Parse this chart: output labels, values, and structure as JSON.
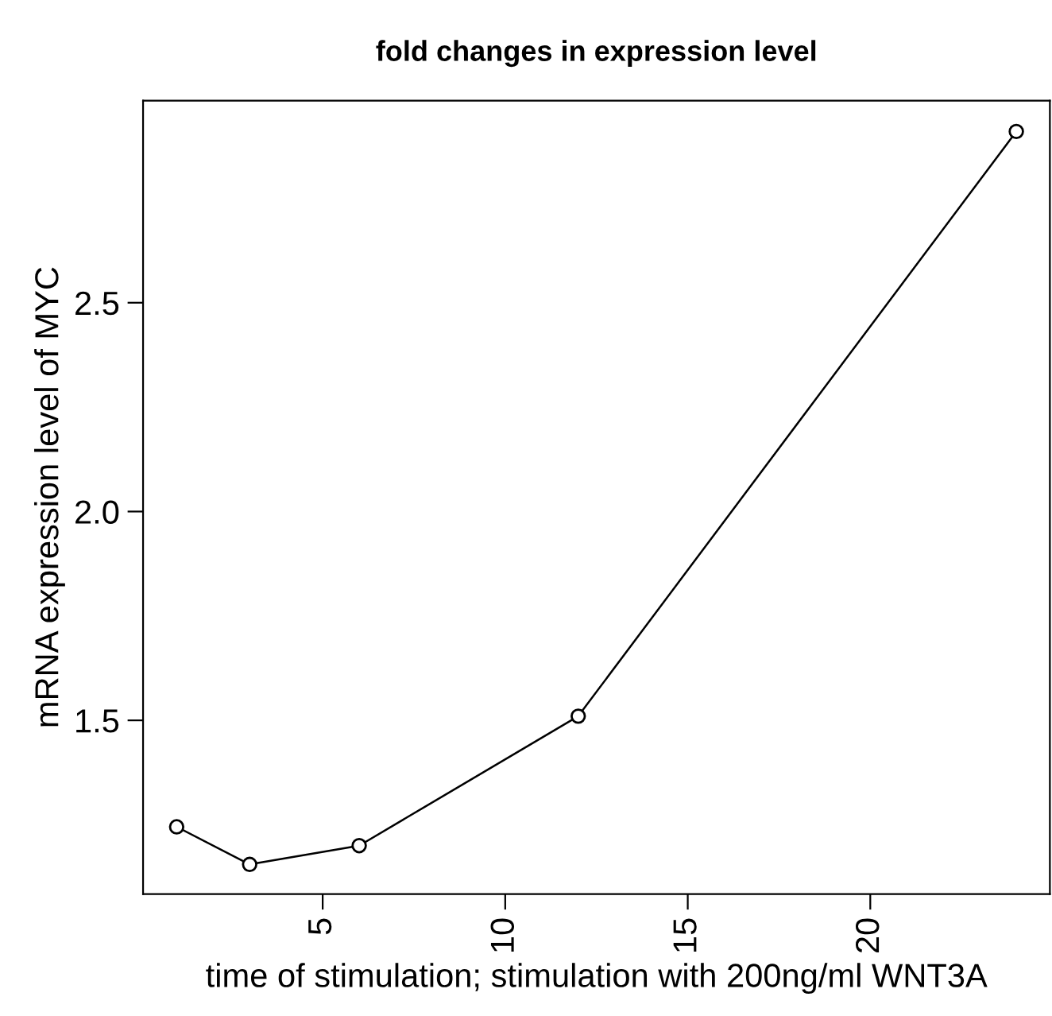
{
  "chart_data": {
    "type": "line",
    "title": "fold changes in expression level",
    "xlabel": "time of stimulation; stimulation with 200ng/ml WNT3A",
    "ylabel": "mRNA expression level of MYC",
    "x": [
      1,
      3,
      6,
      12,
      24
    ],
    "series": [
      {
        "color": "#000000",
        "values": [
          1.245,
          1.155,
          1.2,
          1.51,
          2.91
        ]
      }
    ],
    "xlim": [
      0.08,
      24.92
    ],
    "ylim": [
      1.084,
      2.984
    ],
    "xticks": [
      5,
      10,
      15,
      20
    ],
    "yticks": [
      1.5,
      {
        "value": 2,
        "label": "2.0"
      },
      2.5
    ],
    "marker": "circle",
    "line_style": "solid",
    "grid": false,
    "legend": false
  }
}
